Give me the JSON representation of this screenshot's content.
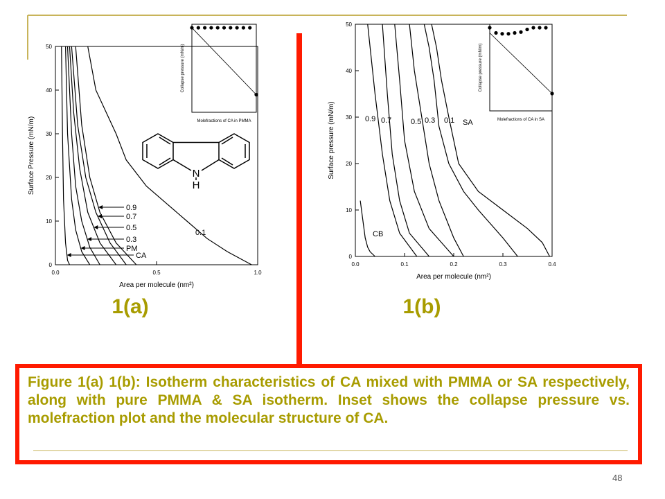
{
  "chart_data": [
    {
      "type": "line",
      "xlabel": "Area per molecule (nm²)",
      "ylabel": "Surface Pressure (mN/m)",
      "xlim": [
        0,
        1.0
      ],
      "xticks": [
        {
          "value": 0,
          "label": "0.0"
        },
        0.5,
        {
          "value": 1.0,
          "label": "1.0"
        }
      ],
      "ylim": [
        0,
        50
      ],
      "yticks": [
        0,
        10,
        20,
        30,
        40,
        50
      ],
      "series": [
        {
          "name": "0.9",
          "color": "#000000",
          "x": [
            0.1,
            0.13,
            0.17,
            0.22,
            0.3,
            0.4
          ],
          "values": [
            50,
            32,
            20,
            12,
            5,
            0
          ]
        },
        {
          "name": "0.7",
          "color": "#000000",
          "x": [
            0.08,
            0.11,
            0.15,
            0.2,
            0.27,
            0.35
          ],
          "values": [
            50,
            32,
            20,
            12,
            5,
            0
          ]
        },
        {
          "name": "0.5",
          "color": "#000000",
          "x": [
            0.07,
            0.09,
            0.12,
            0.16,
            0.22,
            0.3
          ],
          "values": [
            50,
            35,
            22,
            12,
            5,
            0
          ]
        },
        {
          "name": "0.3",
          "color": "#000000",
          "x": [
            0.06,
            0.08,
            0.1,
            0.13,
            0.17,
            0.22
          ],
          "values": [
            50,
            30,
            18,
            10,
            4,
            0
          ]
        },
        {
          "name": "PM",
          "color": "#000000",
          "x": [
            0.05,
            0.06,
            0.08,
            0.1,
            0.13,
            0.17
          ],
          "values": [
            50,
            30,
            15,
            8,
            3,
            0
          ]
        },
        {
          "name": "CA",
          "color": "#000000",
          "x": [
            0.03,
            0.035,
            0.04,
            0.05,
            0.06,
            0.07
          ],
          "values": [
            50,
            30,
            15,
            5,
            1,
            0
          ]
        },
        {
          "name": "0.1",
          "color": "#000000",
          "x": [
            0.16,
            0.2,
            0.25,
            0.3,
            0.35,
            0.45,
            0.55,
            0.65,
            0.75,
            0.85,
            0.97
          ],
          "values": [
            50,
            40,
            35,
            30,
            24,
            18,
            14,
            10,
            6,
            3,
            0
          ]
        }
      ]
    },
    {
      "type": "line",
      "xlabel": "Area per molecule (nm²)",
      "ylabel": "Surface pressure (mN/m)",
      "xlim": [
        0,
        0.4
      ],
      "xticks": [
        {
          "value": 0,
          "label": "0.0"
        },
        0.1,
        0.2,
        0.3,
        0.4
      ],
      "ylim": [
        0,
        50
      ],
      "yticks": [
        0,
        10,
        20,
        30,
        40,
        50
      ],
      "series": [
        {
          "name": "CB",
          "color": "#000000",
          "x": [
            0.01,
            0.015,
            0.02,
            0.025,
            0.03,
            0.04
          ],
          "values": [
            12,
            8,
            4,
            2,
            1,
            0
          ]
        },
        {
          "name": "0.9",
          "color": "#000000",
          "x": [
            0.025,
            0.04,
            0.055,
            0.07,
            0.09,
            0.125
          ],
          "values": [
            50,
            35,
            22,
            12,
            5,
            0
          ]
        },
        {
          "name": "0.7",
          "color": "#000000",
          "x": [
            0.055,
            0.065,
            0.075,
            0.09,
            0.11,
            0.15
          ],
          "values": [
            50,
            35,
            22,
            12,
            5,
            0
          ]
        },
        {
          "name": "0.5",
          "color": "#000000",
          "x": [
            0.08,
            0.09,
            0.1,
            0.12,
            0.15,
            0.2
          ],
          "values": [
            50,
            38,
            25,
            14,
            6,
            0
          ]
        },
        {
          "name": "0.3",
          "color": "#000000",
          "x": [
            0.11,
            0.12,
            0.135,
            0.15,
            0.17,
            0.2,
            0.22
          ],
          "values": [
            50,
            40,
            30,
            20,
            12,
            4,
            0
          ]
        },
        {
          "name": "0.1",
          "color": "#000000",
          "x": [
            0.14,
            0.15,
            0.16,
            0.17,
            0.19,
            0.22,
            0.25,
            0.3,
            0.33
          ],
          "values": [
            50,
            45,
            38,
            28,
            20,
            14,
            10,
            4,
            0
          ]
        },
        {
          "name": "SA",
          "color": "#000000",
          "x": [
            0.155,
            0.165,
            0.175,
            0.19,
            0.21,
            0.25,
            0.3,
            0.35,
            0.38,
            0.395
          ],
          "values": [
            50,
            45,
            38,
            30,
            20,
            14,
            10,
            6,
            3,
            0
          ]
        }
      ]
    },
    {
      "type": "scatter",
      "xlabel": "Molefractions of CA in PMMA",
      "ylabel": "Collapse pressure (mN/m)",
      "xlim": [
        0,
        1
      ],
      "ylim": [
        0,
        50
      ],
      "points": {
        "x": [
          0,
          0.1,
          0.2,
          0.3,
          0.4,
          0.5,
          0.6,
          0.7,
          0.8,
          0.9,
          1.0
        ],
        "values": [
          48,
          48,
          48,
          48,
          48,
          48,
          48,
          48,
          48,
          48,
          10
        ]
      },
      "trend": {
        "x": [
          0,
          1.0
        ],
        "values": [
          48,
          10
        ]
      }
    },
    {
      "type": "scatter",
      "xlabel": "Molefractions of CA in SA",
      "ylabel": "Collapse pressure (mN/m)",
      "xlim": [
        0,
        1
      ],
      "ylim": [
        0,
        50
      ],
      "points": {
        "x": [
          0,
          0.1,
          0.2,
          0.3,
          0.4,
          0.5,
          0.6,
          0.7,
          0.8,
          0.9,
          1.0
        ],
        "values": [
          48,
          45,
          44.5,
          44.5,
          45,
          45.5,
          47,
          48,
          48,
          48,
          10
        ]
      },
      "trend": {
        "x": [
          0,
          1.0
        ],
        "values": [
          45,
          10
        ]
      }
    }
  ],
  "figure_labels": [
    "1(a)",
    "1(b)"
  ],
  "structure": {
    "atom": "N",
    "hydrogen": "H"
  },
  "caption": "Figure 1(a) 1(b): Isotherm characteristics of CA mixed with PMMA or SA respectively, along with pure PMMA & SA isotherm. Inset shows the collapse pressure vs. molefraction plot and the molecular structure of CA.",
  "page_number": "48"
}
